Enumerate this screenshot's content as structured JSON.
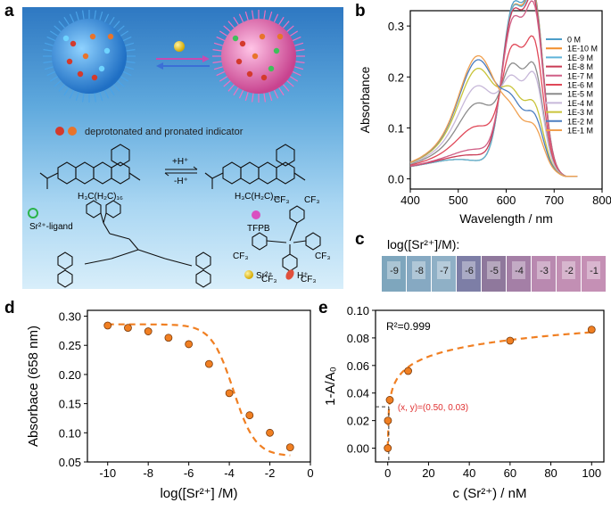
{
  "panels": {
    "a": "a",
    "b": "b",
    "c": "c",
    "d": "d",
    "e": "e"
  },
  "scheme": {
    "indicator_legend": "deprotonated and pronated indicator",
    "reaction_plus": "+H⁺",
    "reaction_minus": "-H⁺",
    "indicator_tail_left": "H₃C(H₂C)₁₆",
    "indicator_tail_right": "H₃C(H₂C)₁₆",
    "ligand_label": "Sr²⁺-ligand",
    "tfpb_label": "TFPB",
    "cf3": "CF₃",
    "sr_label": "Sr²⁺",
    "h_label": "H⁺"
  },
  "panel_c": {
    "title": "log([Sr²⁺]/M):",
    "labels": [
      "-9",
      "-8",
      "-7",
      "-6",
      "-5",
      "-4",
      "-3",
      "-2",
      "-1"
    ],
    "colors": [
      "#7ea6bd",
      "#86a9c2",
      "#8fb0c6",
      "#7d7ea6",
      "#8f789c",
      "#a47fa6",
      "#b989b0",
      "#c28fb4",
      "#c590b5"
    ]
  },
  "chart_data": [
    {
      "id": "b",
      "type": "line",
      "xlabel": "Wavelength / nm",
      "ylabel": "Absorbance",
      "xlim": [
        400,
        800
      ],
      "ylim": [
        -0.02,
        0.33
      ],
      "xticks": [
        400,
        500,
        600,
        700,
        800
      ],
      "yticks": [
        0.0,
        0.1,
        0.2,
        0.3
      ],
      "xtick_labels": [
        "400",
        "500",
        "600",
        "700",
        "800"
      ],
      "ytick_labels": [
        "0.0",
        "0.1",
        "0.2",
        "0.3"
      ],
      "legend_position": "top-right",
      "series": [
        {
          "name": "0 M",
          "color": "#4c9ec9",
          "peak610": 0.27,
          "peak658": 0.285,
          "trough": 0.23,
          "peak550": 0.0
        },
        {
          "name": "1E-10 M",
          "color": "#f28e2b",
          "peak610": 0.265,
          "peak658": 0.285,
          "trough": 0.225,
          "peak550": 0.0
        },
        {
          "name": "1E-9 M",
          "color": "#5fb4d9",
          "peak610": 0.265,
          "peak658": 0.28,
          "trough": 0.222,
          "peak550": 0.0
        },
        {
          "name": "1E-8 M",
          "color": "#c93b55",
          "peak610": 0.258,
          "peak658": 0.275,
          "trough": 0.218,
          "peak550": 0.01
        },
        {
          "name": "1E-7 M",
          "color": "#d05f86",
          "peak610": 0.245,
          "peak658": 0.268,
          "trough": 0.205,
          "peak550": 0.02
        },
        {
          "name": "1E-6 M",
          "color": "#e04858",
          "peak610": 0.195,
          "peak658": 0.215,
          "trough": 0.165,
          "peak550": 0.06
        },
        {
          "name": "1E-5 M",
          "color": "#8c8c8c",
          "peak610": 0.16,
          "peak658": 0.175,
          "trough": 0.135,
          "peak550": 0.1
        },
        {
          "name": "1E-4 M",
          "color": "#c7b8d9",
          "peak610": 0.135,
          "peak658": 0.165,
          "trough": 0.115,
          "peak550": 0.13
        },
        {
          "name": "1E-3 M",
          "color": "#c9c43a",
          "peak610": 0.11,
          "peak658": 0.115,
          "trough": 0.095,
          "peak550": 0.16
        },
        {
          "name": "1E-2 M",
          "color": "#4c7ebf",
          "peak610": 0.095,
          "peak658": 0.098,
          "trough": 0.082,
          "peak550": 0.175
        },
        {
          "name": "1E-1 M",
          "color": "#f0a050",
          "peak610": 0.078,
          "peak658": 0.08,
          "trough": 0.07,
          "peak550": 0.182
        }
      ]
    },
    {
      "id": "d",
      "type": "scatter",
      "xlabel": "log([Sr²⁺] /M)",
      "ylabel": "Absorbace (658 nm)",
      "xlim": [
        -11,
        0
      ],
      "ylim": [
        0.05,
        0.31
      ],
      "xticks": [
        -10,
        -8,
        -6,
        -4,
        -2,
        0
      ],
      "yticks": [
        0.05,
        0.1,
        0.15,
        0.2,
        0.25,
        0.3
      ],
      "xtick_labels": [
        "-10",
        "-8",
        "-6",
        "-4",
        "-2",
        "0"
      ],
      "ytick_labels": [
        "0.05",
        "0.10",
        "0.15",
        "0.20",
        "0.25",
        "0.30"
      ],
      "points": [
        {
          "x": -10,
          "y": 0.284
        },
        {
          "x": -9,
          "y": 0.28
        },
        {
          "x": -8,
          "y": 0.274
        },
        {
          "x": -7,
          "y": 0.263
        },
        {
          "x": -6,
          "y": 0.252
        },
        {
          "x": -5,
          "y": 0.218
        },
        {
          "x": -4,
          "y": 0.168
        },
        {
          "x": -3,
          "y": 0.13
        },
        {
          "x": -2,
          "y": 0.1
        },
        {
          "x": -1,
          "y": 0.075
        }
      ],
      "fit": {
        "top": 0.286,
        "bottom": 0.06,
        "center": -3.8,
        "slope": 0.5,
        "x_from": -10,
        "x_to": -1
      },
      "marker_color": "#f07f22"
    },
    {
      "id": "e",
      "type": "scatter",
      "xlabel": "c (Sr²⁺) / nM",
      "ylabel": "1-A/A₀",
      "xlim": [
        -6,
        106
      ],
      "ylim": [
        -0.01,
        0.1
      ],
      "xticks": [
        0,
        20,
        40,
        60,
        80,
        100
      ],
      "yticks": [
        0.0,
        0.02,
        0.04,
        0.06,
        0.08,
        0.1
      ],
      "xtick_labels": [
        "0",
        "20",
        "40",
        "60",
        "80",
        "100"
      ],
      "ytick_labels": [
        "0.00",
        "0.02",
        "0.04",
        "0.06",
        "0.08",
        "0.10"
      ],
      "points": [
        {
          "x": 0,
          "y": 0.0
        },
        {
          "x": 0.1,
          "y": 0.02
        },
        {
          "x": 1,
          "y": 0.035
        },
        {
          "x": 10,
          "y": 0.056
        },
        {
          "x": 60,
          "y": 0.078
        },
        {
          "x": 100,
          "y": 0.086
        }
      ],
      "annotation_r2": "R²=0.999",
      "annotation_xy": "(x, y)=(0.50, 0.03)",
      "marker_x": 0.5,
      "marker_y": 0.03,
      "marker_color": "#f07f22",
      "annotation_color": "#e03030"
    }
  ]
}
